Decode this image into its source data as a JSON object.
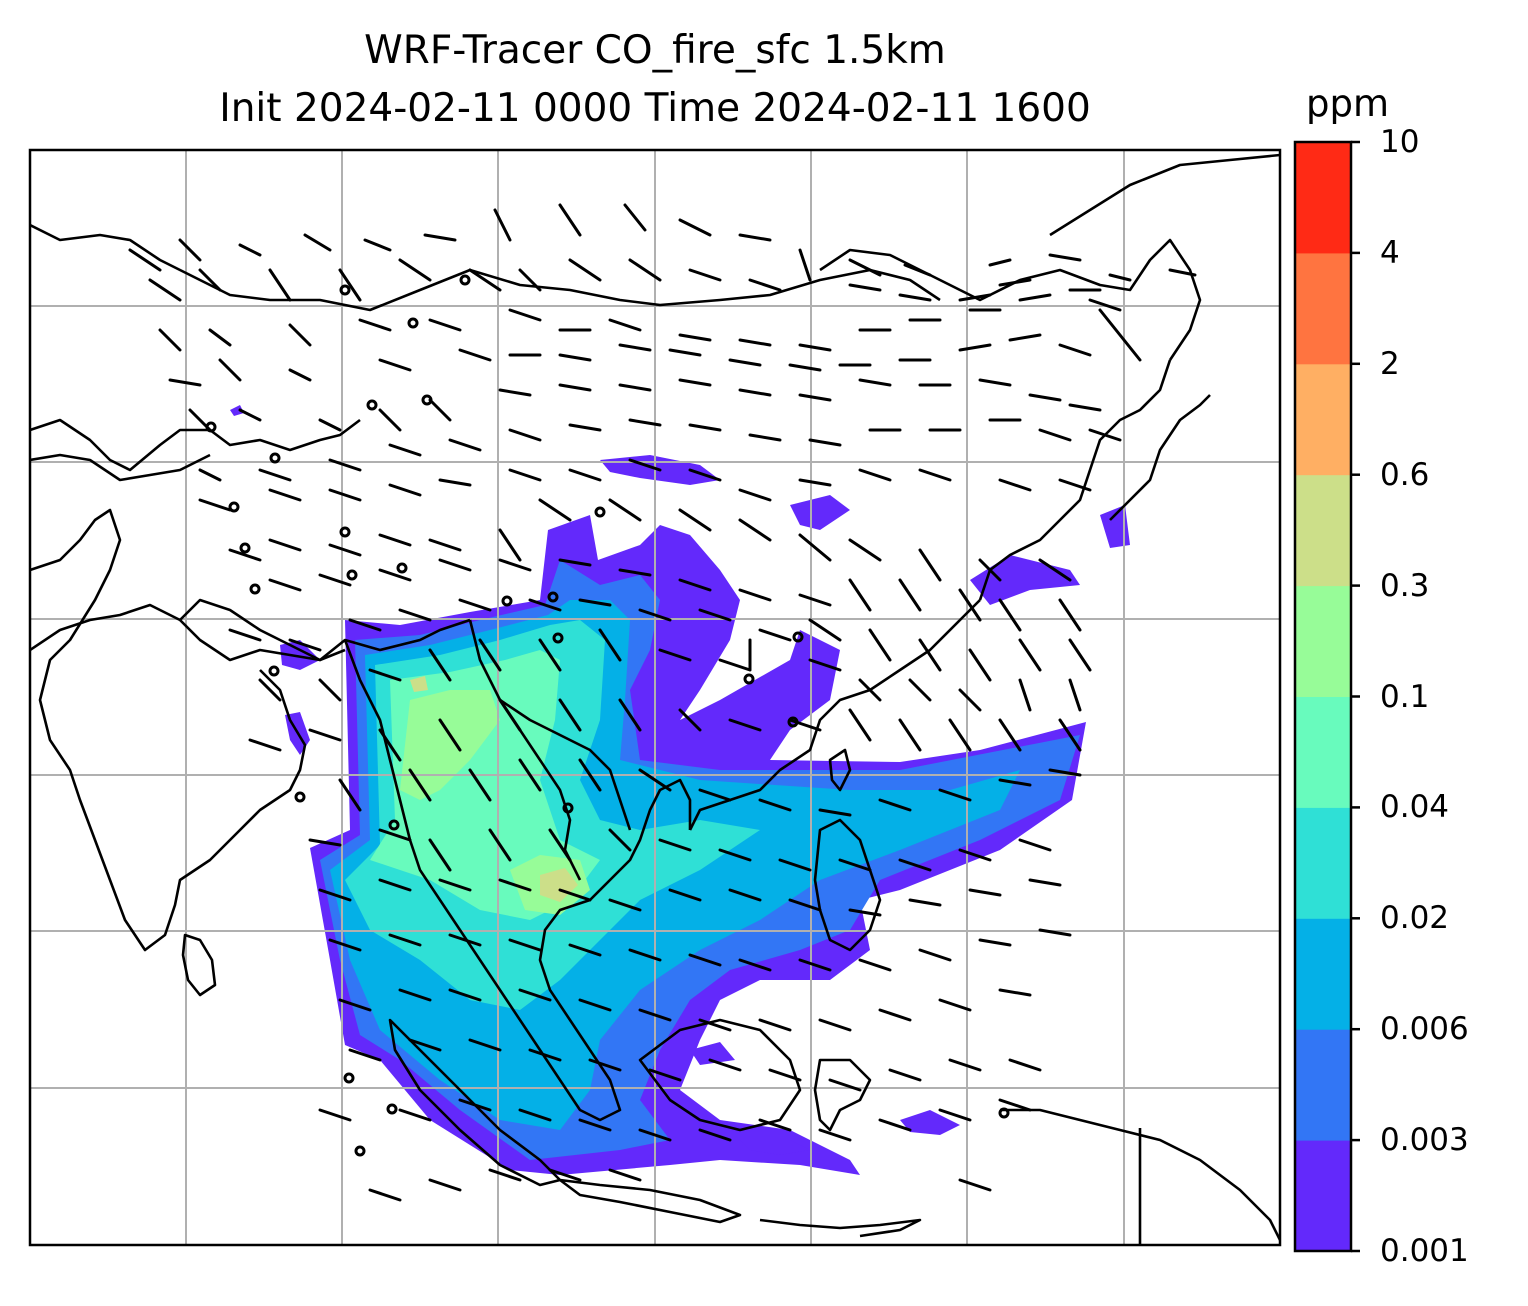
{
  "title": {
    "line1": "WRF-Tracer CO_fire_sfc 1.5km",
    "line2": "Init 2024-02-11 0000 Time 2024-02-11 1600"
  },
  "colorbar": {
    "unit": "ppm",
    "levels": [
      "0.001",
      "0.003",
      "0.006",
      "0.02",
      "0.04",
      "0.1",
      "0.3",
      "0.6",
      "2",
      "4",
      "10"
    ],
    "colors": [
      "#6329fb",
      "#3276f5",
      "#04b0e7",
      "#2fe0d6",
      "#68fbbd",
      "#97fc98",
      "#ccdf89",
      "#ffaf63",
      "#ff7440",
      "#ff2a15"
    ]
  },
  "map": {
    "gridlines": true,
    "features": [
      "coastlines",
      "country-borders",
      "wind-barbs",
      "co-fire-plume"
    ]
  }
}
